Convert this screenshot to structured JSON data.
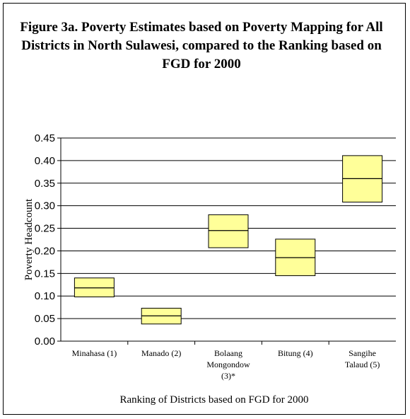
{
  "chart_data": {
    "type": "box",
    "title": "Figure 3a. Poverty Estimates based on Poverty Mapping for All Districts in North Sulawesi, compared to the Ranking based on FGD for 2000",
    "xlabel": "Ranking of Districts based on FGD for 2000",
    "ylabel": "Poverty Headcount",
    "ylim": [
      0,
      0.45
    ],
    "yticks": [
      "0.00",
      "0.05",
      "0.10",
      "0.15",
      "0.20",
      "0.25",
      "0.30",
      "0.35",
      "0.40",
      "0.45"
    ],
    "grid": true,
    "categories": [
      [
        "Minahasa (1)"
      ],
      [
        "Manado (2)"
      ],
      [
        "Bolaang",
        "Mongondow",
        "(3)*"
      ],
      [
        "Bitung (4)"
      ],
      [
        "Sangihe",
        "Talaud (5)"
      ]
    ],
    "boxes": [
      {
        "low": 0.098,
        "mid": 0.118,
        "high": 0.14
      },
      {
        "low": 0.038,
        "mid": 0.056,
        "high": 0.073
      },
      {
        "low": 0.207,
        "mid": 0.245,
        "high": 0.28
      },
      {
        "low": 0.145,
        "mid": 0.185,
        "high": 0.226
      },
      {
        "low": 0.308,
        "mid": 0.36,
        "high": 0.411
      }
    ],
    "box_fill": "#ffff99"
  }
}
